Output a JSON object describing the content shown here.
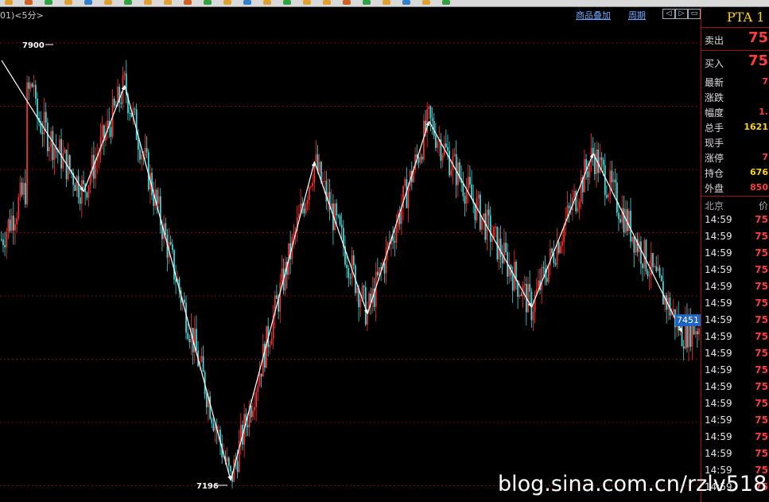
{
  "toolbar": {
    "icons": [
      "toolbar-icon",
      "toolbar-icon",
      "toolbar-icon",
      "toolbar-icon",
      "toolbar-icon",
      "toolbar-icon",
      "toolbar-icon",
      "toolbar-icon",
      "toolbar-icon",
      "toolbar-icon",
      "toolbar-icon",
      "toolbar-icon",
      "toolbar-icon",
      "toolbar-icon",
      "toolbar-icon",
      "toolbar-icon",
      "toolbar-icon",
      "toolbar-icon",
      "toolbar-icon",
      "toolbar-icon",
      "toolbar-icon",
      "toolbar-icon",
      "toolbar-icon"
    ]
  },
  "header": {
    "period": "01)<5分>",
    "overlay_link": "商品叠加",
    "cycle_link": "周期",
    "nav_prev": "◁",
    "nav_next": "▷",
    "nav_expand": "▭"
  },
  "quote": {
    "symbol": "PTA 1",
    "sell_label": "卖出",
    "sell_value": "75",
    "buy_label": "买入",
    "buy_value": "75",
    "stats": [
      {
        "label": "最新",
        "value": "7",
        "color": "#ff3b3b"
      },
      {
        "label": "涨跌",
        "value": "",
        "color": "#ff3b3b"
      },
      {
        "label": "幅度",
        "value": "1.",
        "color": "#ff3b3b"
      },
      {
        "label": "总手",
        "value": "1621",
        "color": "#ffd700"
      },
      {
        "label": "现手",
        "value": "",
        "color": "#ffd700"
      },
      {
        "label": "涨停",
        "value": "7",
        "color": "#ff3b3b"
      },
      {
        "label": "持仓",
        "value": "676",
        "color": "#ffd700"
      },
      {
        "label": "外盘",
        "value": "850",
        "color": "#ff3b3b"
      }
    ],
    "ticks_head": {
      "place": "北京",
      "price": "价"
    },
    "ticks": [
      {
        "time": "14:59",
        "price": "75"
      },
      {
        "time": "14:59",
        "price": "75"
      },
      {
        "time": "14:59",
        "price": "75"
      },
      {
        "time": "14:59",
        "price": "75"
      },
      {
        "time": "14:59",
        "price": "75"
      },
      {
        "time": "14:59",
        "price": "75"
      },
      {
        "time": "14:59",
        "price": "75"
      },
      {
        "time": "14:59",
        "price": "75"
      },
      {
        "time": "14:59",
        "price": "75"
      },
      {
        "time": "14:59",
        "price": "75"
      },
      {
        "time": "14:59",
        "price": "75"
      },
      {
        "time": "14:59",
        "price": "75"
      },
      {
        "time": "14:59",
        "price": "75"
      },
      {
        "time": "14:59",
        "price": "75"
      },
      {
        "time": "14:59",
        "price": "75"
      },
      {
        "time": "14:59",
        "price": "75"
      },
      {
        "time": "14:59",
        "price": "75"
      }
    ]
  },
  "chart": {
    "last_price_tag": "7451",
    "label_high": "7900",
    "label_low": "7196",
    "watermark": "blog.sina.com.cn/rzlv518"
  },
  "chart_data": {
    "type": "candlestick",
    "ylim": [
      7160,
      7965
    ],
    "colors": {
      "up": "#ff3030",
      "down": "#40e0e0",
      "zigzag": "#ffffff",
      "grid": "#8b0000"
    },
    "zigzag": [
      {
        "i": 0,
        "price": 7900
      },
      {
        "i": 48,
        "price": 7680
      },
      {
        "i": 72,
        "price": 7858
      },
      {
        "i": 134,
        "price": 7196
      },
      {
        "i": 183,
        "price": 7730
      },
      {
        "i": 214,
        "price": 7475
      },
      {
        "i": 250,
        "price": 7798
      },
      {
        "i": 310,
        "price": 7486
      },
      {
        "i": 346,
        "price": 7744
      },
      {
        "i": 398,
        "price": 7444
      }
    ]
  }
}
